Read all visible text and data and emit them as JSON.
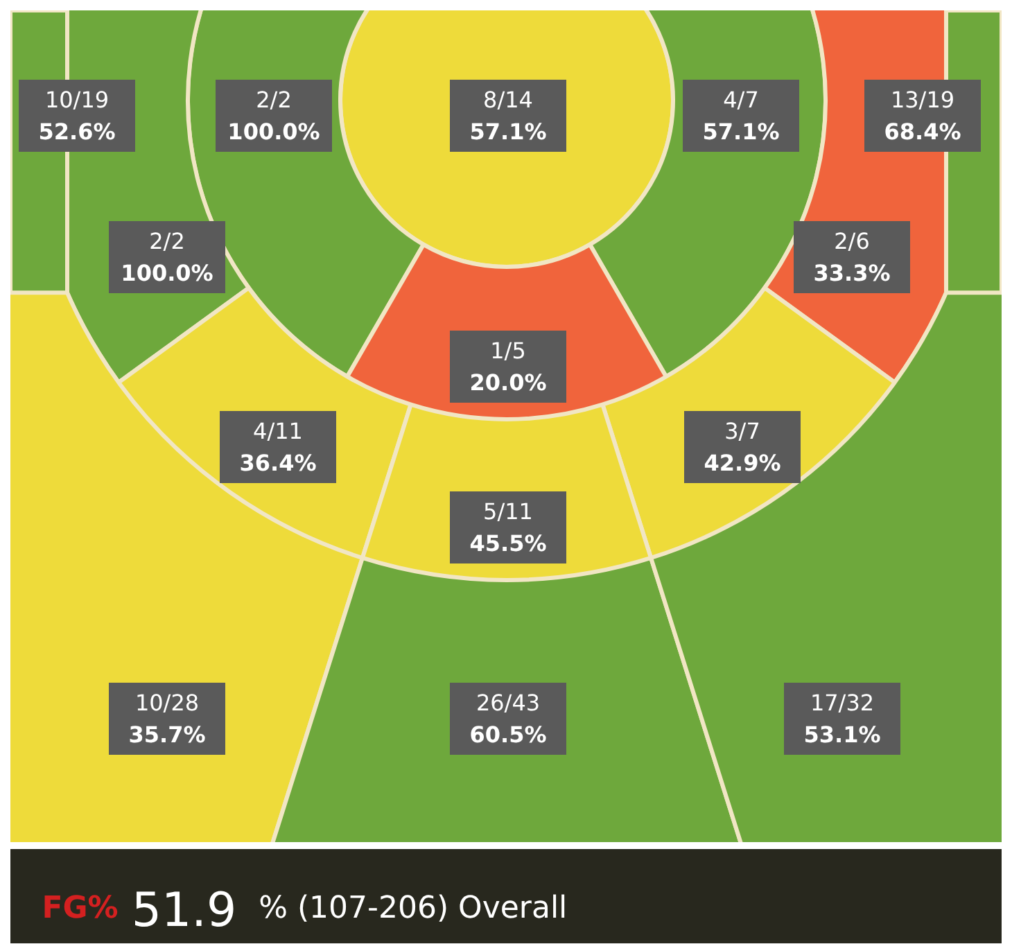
{
  "chart_data": {
    "type": "other",
    "categories": [
      null,
      null,
      null,
      null,
      null,
      null,
      null,
      null,
      null,
      null,
      null,
      null,
      null,
      null
    ],
    "values": [
      52.6,
      100.0,
      57.1,
      57.1,
      68.4,
      100.0,
      33.3,
      20.0,
      36.4,
      42.9,
      45.5,
      35.7,
      60.5,
      53.1
    ],
    "value_labels": [
      "10/19\n52.6%",
      "2/2\n100.0%",
      "8/14\n57.1%",
      "4/7\n57.1%",
      "13/19\n68.4%",
      "2/2\n100.0%",
      "2/6\n33.3%",
      "1/5\n20.0%",
      "4/11\n36.4%",
      "3/7\n42.9%",
      "5/11\n45.5%",
      "10/28\n35.7%",
      "26/43\n60.5%",
      "17/32\n53.1%"
    ],
    "colors": [
      "#6ea83c",
      "#6ea83c",
      "#eedb3a",
      "#6ea83c",
      "#6ea83c",
      "#6ea83c",
      "#f0643c",
      "#f0643c",
      "#eedb3a",
      "#eedb3a",
      "#eedb3a",
      "#eedb3a",
      "#6ea83c",
      "#6ea83c"
    ],
    "annotations": [
      "FG%",
      "51.9",
      "% (107-206) Overall"
    ]
  }
}
